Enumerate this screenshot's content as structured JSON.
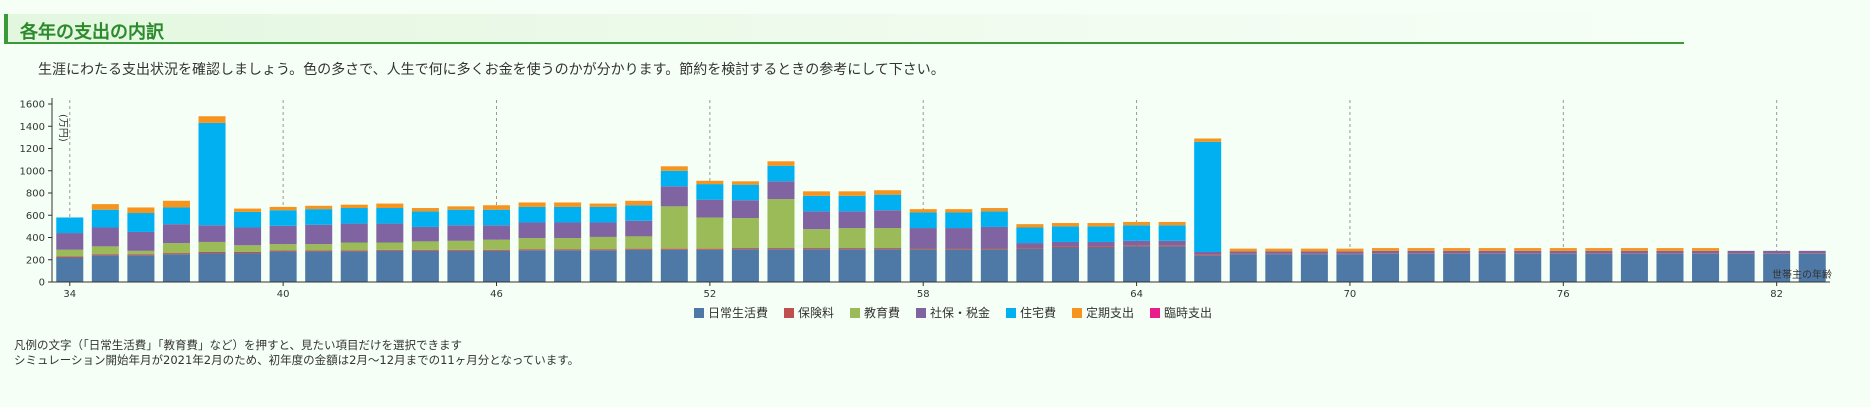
{
  "section": {
    "title": "各年の支出の内訳",
    "intro": "生涯にわたる支出状況を確認しましょう。色の多さで、人生で何に多くお金を使うのかが分かります。節約を検討するときの参考にして下さい。"
  },
  "notes": {
    "line1": "凡例の文字（「日常生活費」「教育費」など）を押すと、見たい項目だけを選択できます",
    "line2": "シミュレーション開始年月が2021年2月のため、初年度の金額は2月～12月までの11ヶ月分となっています。"
  },
  "colors": {
    "日常生活費": "#4e79a7",
    "保険料": "#c0504d",
    "教育費": "#9bbb59",
    "社保・税金": "#8064a2",
    "住宅費": "#00b0f0",
    "定期支出": "#f7941d",
    "臨時支出": "#e91e8c"
  },
  "chart_data": {
    "type": "bar",
    "stacked": true,
    "ylabel": "(万円)",
    "xlabel": "世帯主の年齢",
    "ylim": [
      0,
      1600
    ],
    "yticks": [
      0,
      200,
      400,
      600,
      800,
      1000,
      1200,
      1400,
      1600
    ],
    "xticks": [
      34,
      40,
      46,
      52,
      58,
      64,
      70,
      76,
      82
    ],
    "grid": "vertical dashed lines at labeled ages",
    "legend_position": "bottom",
    "categories": [
      34,
      35,
      36,
      37,
      38,
      39,
      40,
      41,
      42,
      43,
      44,
      45,
      46,
      47,
      48,
      49,
      50,
      51,
      52,
      53,
      54,
      55,
      56,
      57,
      58,
      59,
      60,
      61,
      62,
      63,
      64,
      65,
      66,
      67,
      68,
      69,
      70,
      71,
      72,
      73,
      74,
      75,
      76,
      77,
      78,
      79,
      80,
      81,
      82,
      83
    ],
    "series": [
      {
        "name": "日常生活費",
        "values": [
          220,
          240,
          240,
          250,
          260,
          260,
          275,
          275,
          275,
          280,
          280,
          280,
          280,
          285,
          285,
          285,
          290,
          290,
          290,
          295,
          295,
          295,
          295,
          295,
          295,
          295,
          295,
          300,
          310,
          310,
          320,
          320,
          240,
          250,
          250,
          250,
          250,
          255,
          255,
          255,
          255,
          255,
          255,
          255,
          255,
          255,
          255,
          255,
          255,
          255
        ]
      },
      {
        "name": "保険料",
        "values": [
          10,
          10,
          10,
          10,
          10,
          10,
          10,
          10,
          10,
          10,
          10,
          10,
          10,
          10,
          10,
          10,
          10,
          10,
          10,
          10,
          10,
          10,
          10,
          10,
          10,
          10,
          10,
          10,
          10,
          10,
          10,
          10,
          10,
          5,
          5,
          5,
          5,
          5,
          5,
          5,
          5,
          5,
          5,
          5,
          5,
          5,
          5,
          5,
          5,
          5
        ]
      },
      {
        "name": "教育費",
        "values": [
          60,
          70,
          30,
          90,
          90,
          60,
          55,
          55,
          70,
          65,
          75,
          80,
          90,
          100,
          100,
          110,
          110,
          380,
          280,
          270,
          440,
          170,
          180,
          180,
          0,
          0,
          0,
          0,
          0,
          0,
          0,
          0,
          0,
          0,
          0,
          0,
          0,
          0,
          0,
          0,
          0,
          0,
          0,
          0,
          0,
          0,
          0,
          0,
          0,
          0
        ]
      },
      {
        "name": "社保・税金",
        "values": [
          150,
          170,
          170,
          170,
          150,
          160,
          165,
          175,
          170,
          170,
          130,
          140,
          130,
          140,
          140,
          130,
          140,
          180,
          160,
          160,
          160,
          160,
          150,
          160,
          180,
          180,
          190,
          40,
          40,
          40,
          40,
          40,
          20,
          20,
          20,
          20,
          20,
          20,
          20,
          20,
          20,
          20,
          20,
          20,
          20,
          20,
          20,
          20,
          20,
          20
        ]
      },
      {
        "name": "住宅費",
        "values": [
          140,
          160,
          170,
          150,
          920,
          140,
          140,
          140,
          140,
          140,
          140,
          140,
          140,
          140,
          140,
          140,
          140,
          140,
          140,
          140,
          140,
          140,
          140,
          140,
          140,
          140,
          140,
          140,
          140,
          140,
          140,
          140,
          990,
          0,
          0,
          0,
          0,
          0,
          0,
          0,
          0,
          0,
          0,
          0,
          0,
          0,
          0,
          0,
          0,
          0
        ]
      },
      {
        "name": "定期支出",
        "values": [
          0,
          50,
          50,
          60,
          60,
          30,
          30,
          30,
          30,
          40,
          30,
          30,
          40,
          40,
          40,
          30,
          40,
          40,
          30,
          30,
          40,
          40,
          40,
          40,
          30,
          30,
          30,
          30,
          30,
          30,
          30,
          30,
          30,
          25,
          25,
          25,
          25,
          25,
          25,
          25,
          25,
          25,
          25,
          25,
          25,
          25,
          25,
          0,
          0,
          0
        ]
      },
      {
        "name": "臨時支出",
        "values": [
          0,
          0,
          0,
          0,
          0,
          0,
          0,
          0,
          0,
          0,
          0,
          0,
          0,
          0,
          0,
          0,
          0,
          0,
          0,
          0,
          0,
          0,
          0,
          0,
          0,
          0,
          0,
          0,
          0,
          0,
          0,
          0,
          0,
          0,
          0,
          0,
          0,
          0,
          0,
          0,
          0,
          0,
          0,
          0,
          0,
          0,
          0,
          0,
          0,
          0
        ]
      }
    ]
  }
}
